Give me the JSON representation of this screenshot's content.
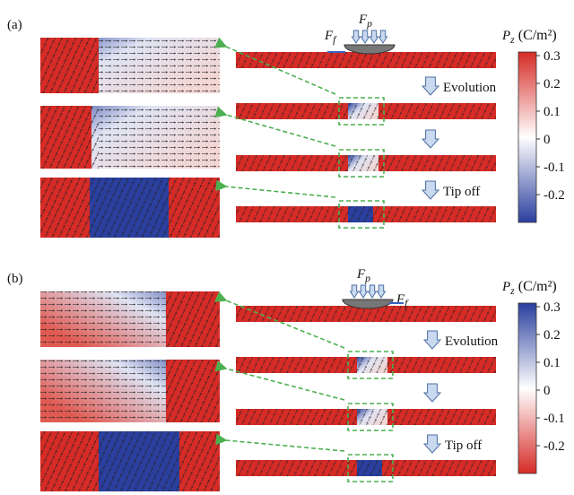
{
  "panels": [
    {
      "label": "(a)",
      "tip_force": {
        "symbol": "F",
        "sub": "p"
      },
      "friction_force": {
        "symbol": "F",
        "sub": "f"
      },
      "steps": [
        "Evolution",
        "Tip off"
      ],
      "colorbar": {
        "symbol": "P",
        "sub": "z",
        "unit": "(C/m²)",
        "ticks": [
          "0.3",
          "0.2",
          "0.1",
          "0",
          "-0.1",
          "-0.2"
        ]
      }
    },
    {
      "label": "(b)",
      "tip_force": {
        "symbol": "F",
        "sub": "p"
      },
      "friction_force": {
        "symbol": "F",
        "sub": "f"
      },
      "steps": [
        "Evolution",
        "Tip off"
      ],
      "colorbar": {
        "symbol": "P",
        "sub": "z",
        "unit": "(C/m²)",
        "ticks": [
          "0.3",
          "0.2",
          "0.1",
          "0",
          "-0.1",
          "-0.2"
        ]
      }
    }
  ]
}
